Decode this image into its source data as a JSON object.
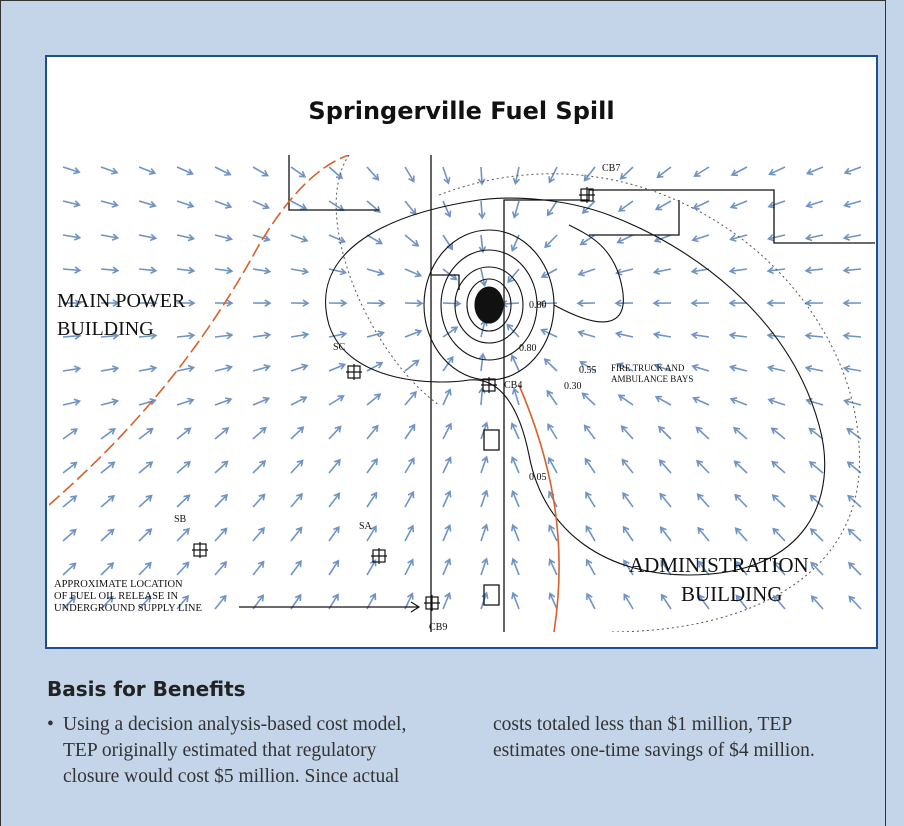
{
  "figure": {
    "title": "Springerville Fuel Spill",
    "map_labels": {
      "main_power_building": [
        "MAIN POWER",
        "BUILDING"
      ],
      "administration_building": [
        "ADMINISTRATION",
        "BUILDING"
      ],
      "release_note": [
        "APPROXIMATE LOCATION",
        "OF FUEL OIL RELEASE IN",
        "UNDERGROUND SUPPLY LINE"
      ],
      "fire_truck": [
        "FIRE TRUCK AND",
        "AMBULANCE BAYS"
      ],
      "wells": [
        "SC",
        "SB",
        "SA",
        "CB4",
        "CB7",
        "CB9"
      ],
      "contours": [
        "0.80",
        "0.80",
        "0.55",
        "0.30",
        "0.05"
      ]
    }
  },
  "section": {
    "heading": "Basis for Benefits",
    "bullets": [
      "Using a decision analysis-based cost model, TEP originally estimated that regulatory closure would cost $5 million. Since actual costs totaled less than $1 million, TEP estimates one-time savings of $4 million."
    ]
  }
}
